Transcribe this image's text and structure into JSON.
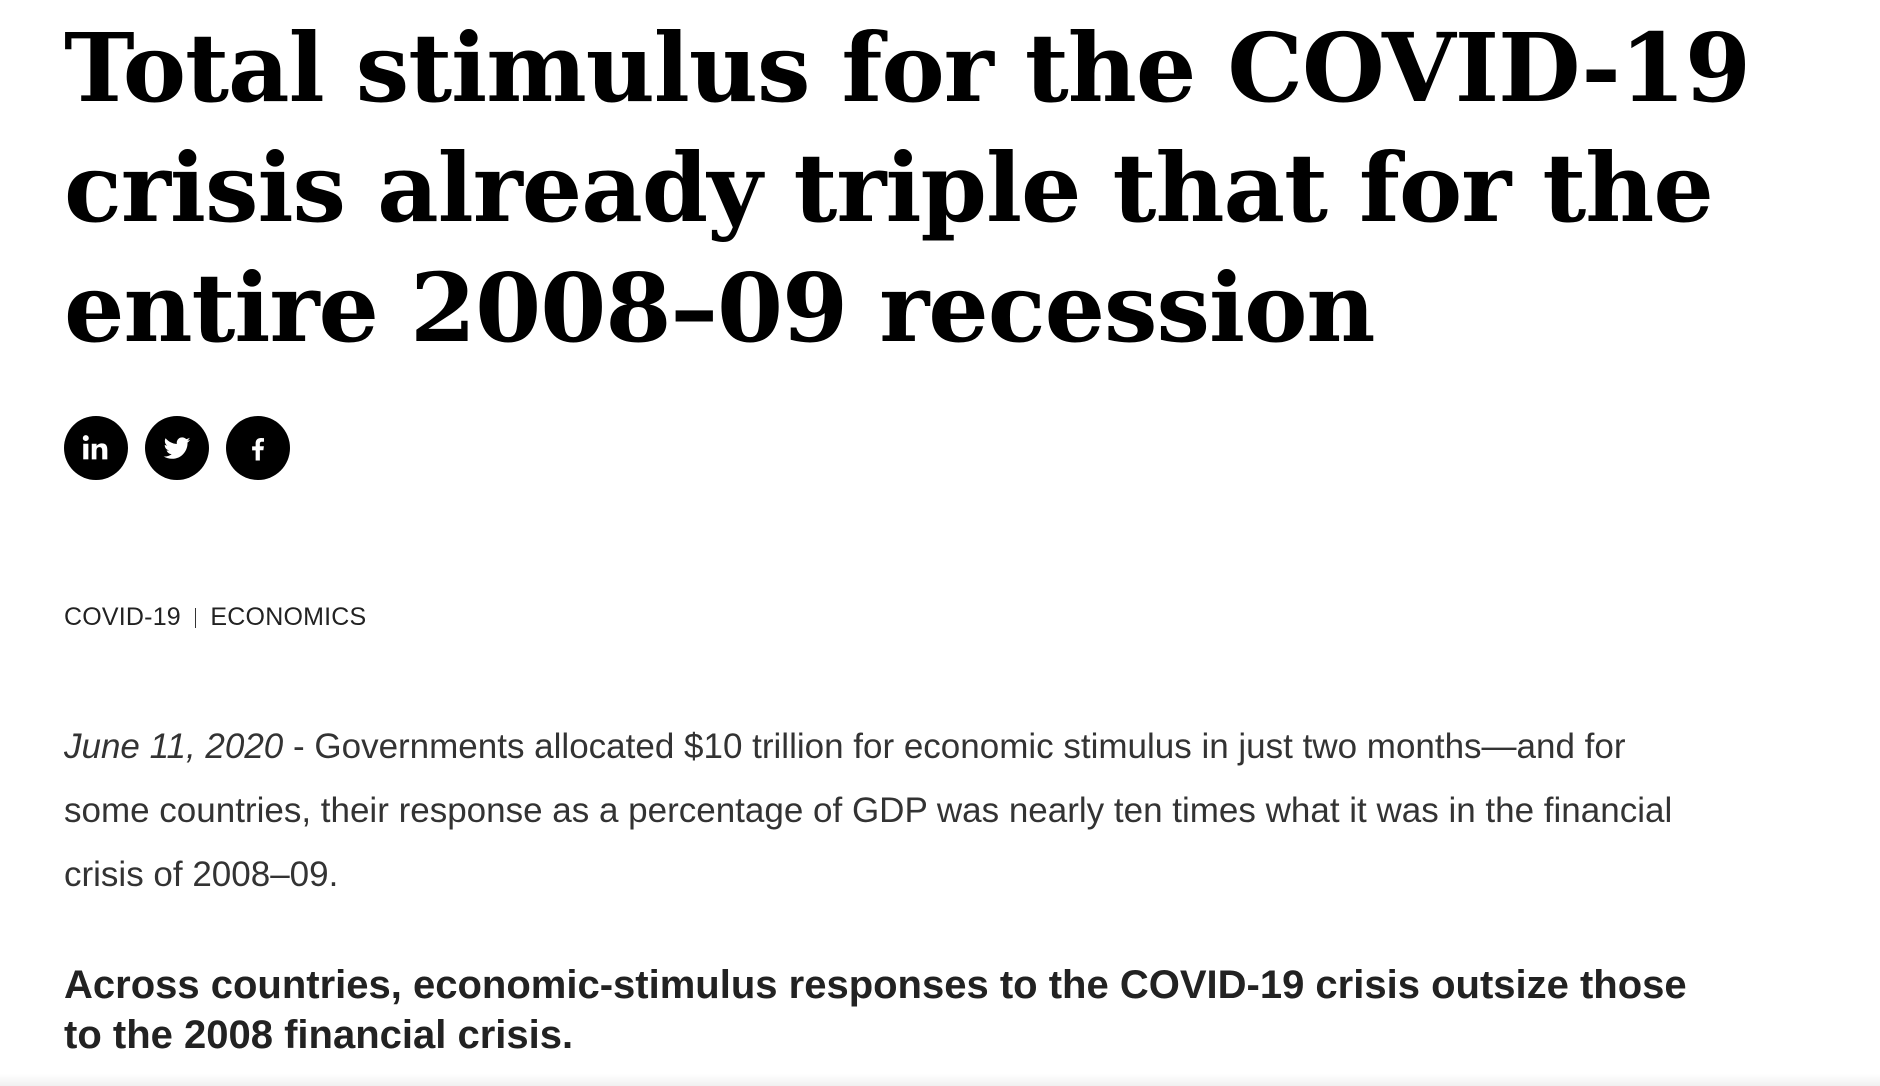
{
  "article": {
    "title": "Total stimulus for the COVID-19 crisis already triple that for the entire 2008–09 recession",
    "share": [
      {
        "name": "LinkedIn",
        "icon": "linkedin-icon"
      },
      {
        "name": "Twitter",
        "icon": "twitter-icon"
      },
      {
        "name": "Facebook",
        "icon": "facebook-icon"
      }
    ],
    "tags": [
      "COVID-19",
      "ECONOMICS"
    ],
    "date": "June 11, 2020",
    "date_separator": " - ",
    "intro": "Governments allocated $10 trillion for economic stimulus in just two months—and for some countries, their response as a percentage of GDP was nearly ten times what it was in the financial crisis of 2008–09.",
    "subhead": "Across countries, economic-stimulus responses to the COVID-19 crisis outsize those to the 2008 financial crisis."
  },
  "colors": {
    "text": "#000000",
    "body_text": "#333333",
    "icon_bg": "#000000",
    "icon_fg": "#ffffff"
  }
}
